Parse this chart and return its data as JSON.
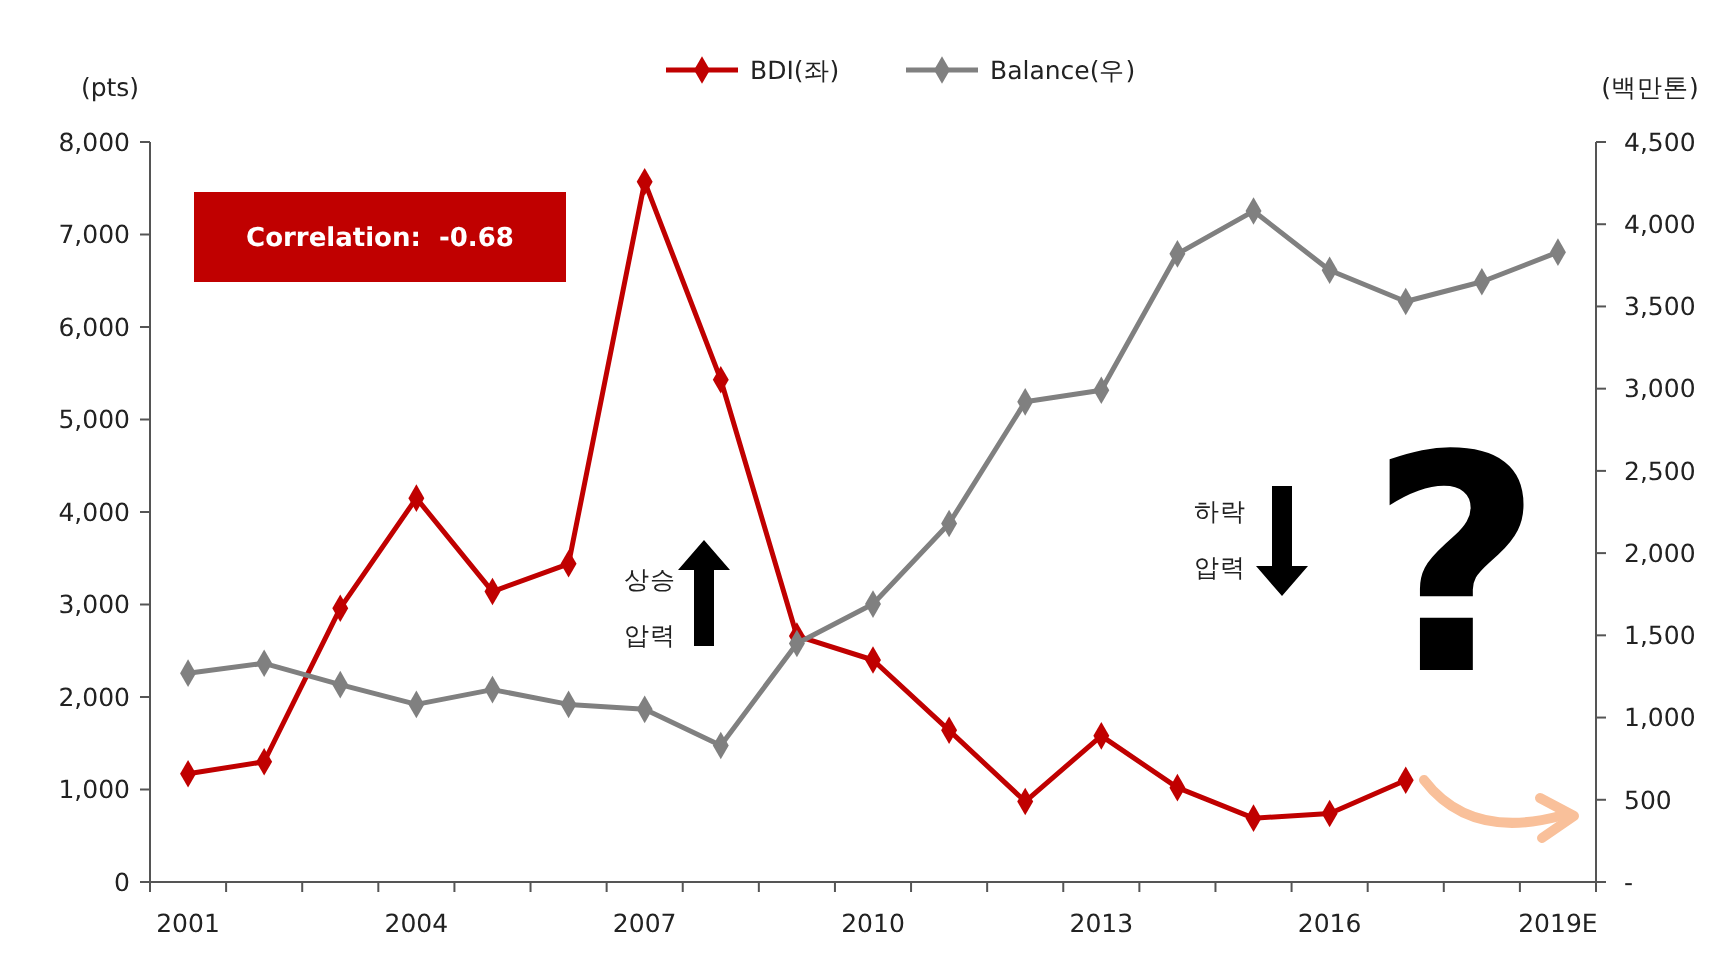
{
  "chart_data": {
    "type": "line",
    "ylabel": "(pts)",
    "y2label": "(백만톤)",
    "categories": [
      "2001",
      null,
      null,
      "2004",
      null,
      null,
      "2007",
      null,
      null,
      "2010",
      null,
      null,
      "2013",
      null,
      null,
      "2016",
      null,
      null,
      "2019E"
    ],
    "series": [
      {
        "name": "BDI(좌)",
        "color": "#c00000",
        "values": [
          1170,
          1300,
          2960,
          4150,
          3140,
          3440,
          7570,
          5430,
          2660,
          2400,
          1640,
          870,
          1580,
          1020,
          690,
          740,
          1100,
          null,
          null
        ]
      },
      {
        "name": "Balance(우)",
        "color": "#808080",
        "axis": "y2",
        "values": [
          1270,
          1330,
          1200,
          1080,
          1170,
          1080,
          1050,
          830,
          1450,
          1690,
          2180,
          2920,
          2990,
          3820,
          4080,
          3720,
          3530,
          3650,
          3830
        ]
      }
    ],
    "ylim": [
      0,
      8000
    ],
    "yticks": [
      0,
      {
        "value": 1000,
        "label": "1,000"
      },
      {
        "value": 2000,
        "label": "2,000"
      },
      {
        "value": 3000,
        "label": "3,000"
      },
      {
        "value": 4000,
        "label": "4,000"
      },
      {
        "value": 5000,
        "label": "5,000"
      },
      {
        "value": 6000,
        "label": "6,000"
      },
      {
        "value": 7000,
        "label": "7,000"
      },
      {
        "value": 8000,
        "label": "8,000"
      }
    ],
    "y2lim": [
      0,
      4500
    ],
    "y2ticks": [
      {
        "value": 0,
        "label": "-"
      },
      500,
      {
        "value": 1000,
        "label": "1,000"
      },
      {
        "value": 1500,
        "label": "1,500"
      },
      {
        "value": 2000,
        "label": "2,000"
      },
      {
        "value": 2500,
        "label": "2,500"
      },
      {
        "value": 3000,
        "label": "3,000"
      },
      {
        "value": 3500,
        "label": "3,500"
      },
      {
        "value": 4000,
        "label": "4,000"
      },
      {
        "value": 4500,
        "label": "4,500"
      }
    ],
    "annotations": [
      "Correlation:  -0.68",
      "상승\n압력",
      "하락\n압력",
      "?"
    ],
    "legend": "top",
    "marker": "diamond",
    "line_style": "solid"
  }
}
